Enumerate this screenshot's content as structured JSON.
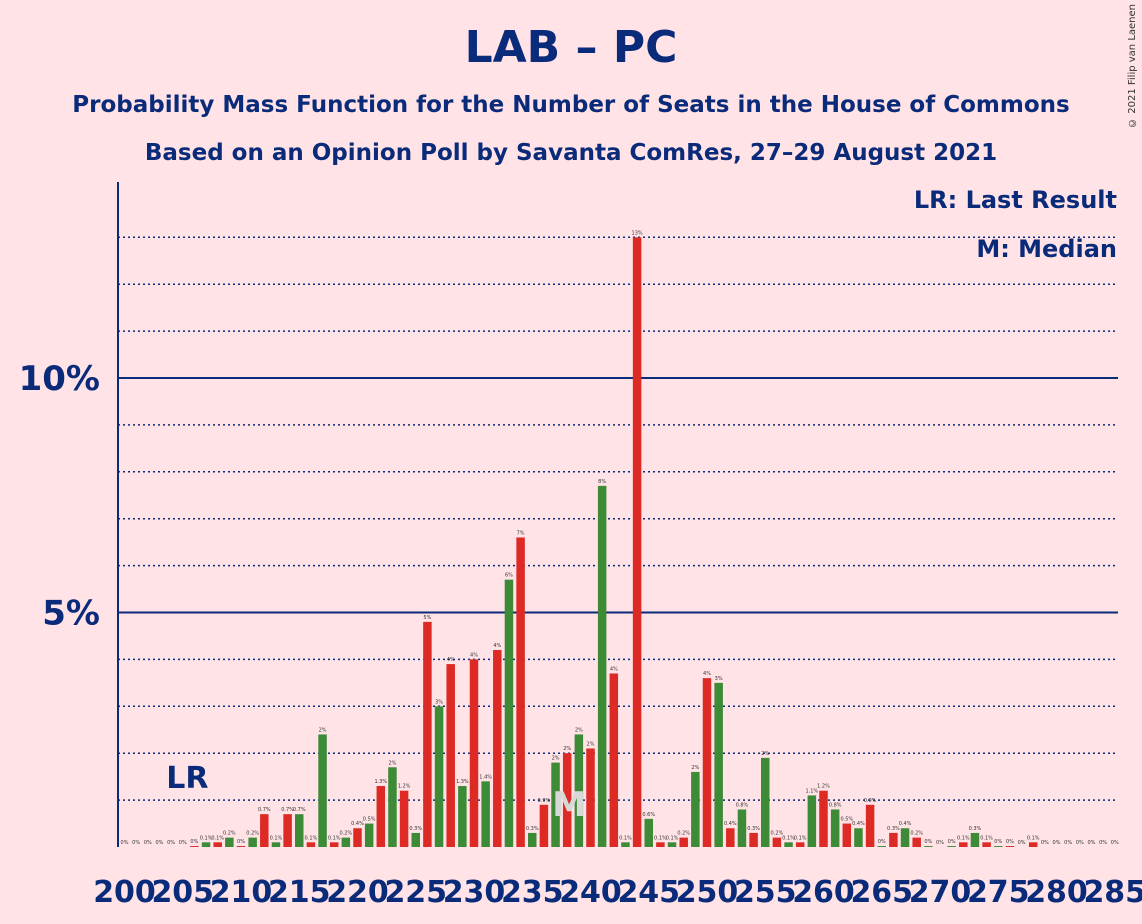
{
  "title": "LAB – PC",
  "subtitle_1": "Probability Mass Function for the Number of Seats in the House of Commons",
  "subtitle_2": "Based on an Opinion Poll by Savanta ComRes, 27–29 August 2021",
  "credit": "© 2021 Filip van Laenen",
  "legend": {
    "lr": "LR: Last Result",
    "m": "M: Median"
  },
  "markers": {
    "lr_label": "LR",
    "median_label": "M",
    "last_result_seat": 206,
    "median_seat": 238
  },
  "colors": {
    "background": "#ffe3e6",
    "text": "#0a2a7a",
    "red": "#dd2a25",
    "green": "#3d8b37",
    "median_marker": "#d8d8d8"
  },
  "chart_data": {
    "type": "bar",
    "x_label": "",
    "y_label": "",
    "xlim": [
      200,
      285
    ],
    "ylim": [
      0,
      14
    ],
    "y_ticks": [
      {
        "value": 5,
        "label": "5%"
      },
      {
        "value": 10,
        "label": "10%"
      }
    ],
    "x_ticks": [
      200,
      205,
      210,
      215,
      220,
      225,
      230,
      235,
      240,
      245,
      250,
      255,
      260,
      265,
      270,
      275,
      280,
      285
    ],
    "bars": [
      {
        "seat": 200,
        "value": 0,
        "label": "0%"
      },
      {
        "seat": 201,
        "value": 0,
        "label": "0%"
      },
      {
        "seat": 202,
        "value": 0,
        "label": "0%"
      },
      {
        "seat": 203,
        "value": 0,
        "label": "0%"
      },
      {
        "seat": 204,
        "value": 0,
        "label": "0%"
      },
      {
        "seat": 205,
        "value": 0,
        "label": "0%"
      },
      {
        "seat": 206,
        "value": 0.02,
        "label": "0%"
      },
      {
        "seat": 207,
        "value": 0.1,
        "label": "0.1%"
      },
      {
        "seat": 208,
        "value": 0.1,
        "label": "0.1%"
      },
      {
        "seat": 209,
        "value": 0.2,
        "label": "0.2%"
      },
      {
        "seat": 210,
        "value": 0.02,
        "label": "0%"
      },
      {
        "seat": 211,
        "value": 0.2,
        "label": "0.2%"
      },
      {
        "seat": 212,
        "value": 0.7,
        "label": "0.7%"
      },
      {
        "seat": 213,
        "value": 0.1,
        "label": "0.1%"
      },
      {
        "seat": 214,
        "value": 0.7,
        "label": "0.7%"
      },
      {
        "seat": 215,
        "value": 0.7,
        "label": "0.7%"
      },
      {
        "seat": 216,
        "value": 0.1,
        "label": "0.1%"
      },
      {
        "seat": 217,
        "value": 2.4,
        "label": "2%"
      },
      {
        "seat": 218,
        "value": 0.1,
        "label": "0.1%"
      },
      {
        "seat": 219,
        "value": 0.2,
        "label": "0.2%"
      },
      {
        "seat": 220,
        "value": 0.4,
        "label": "0.4%"
      },
      {
        "seat": 221,
        "value": 0.5,
        "label": "0.5%"
      },
      {
        "seat": 222,
        "value": 1.3,
        "label": "1.3%"
      },
      {
        "seat": 223,
        "value": 1.7,
        "label": "2%"
      },
      {
        "seat": 224,
        "value": 1.2,
        "label": "1.2%"
      },
      {
        "seat": 225,
        "value": 0.3,
        "label": "0.3%"
      },
      {
        "seat": 226,
        "value": 4.8,
        "label": "5%"
      },
      {
        "seat": 227,
        "value": 3.0,
        "label": "3%"
      },
      {
        "seat": 228,
        "value": 3.9,
        "label": "4%"
      },
      {
        "seat": 229,
        "value": 1.3,
        "label": "1.3%"
      },
      {
        "seat": 230,
        "value": 4.0,
        "label": "4%"
      },
      {
        "seat": 231,
        "value": 1.4,
        "label": "1.4%"
      },
      {
        "seat": 232,
        "value": 4.2,
        "label": "4%"
      },
      {
        "seat": 233,
        "value": 5.7,
        "label": "6%"
      },
      {
        "seat": 234,
        "value": 6.6,
        "label": "7%"
      },
      {
        "seat": 235,
        "value": 0.3,
        "label": "0.3%"
      },
      {
        "seat": 236,
        "value": 0.9,
        "label": "0.9%"
      },
      {
        "seat": 237,
        "value": 1.8,
        "label": "2%"
      },
      {
        "seat": 238,
        "value": 2.0,
        "label": "2%"
      },
      {
        "seat": 239,
        "value": 2.4,
        "label": "2%"
      },
      {
        "seat": 240,
        "value": 2.1,
        "label": "2%"
      },
      {
        "seat": 241,
        "value": 7.7,
        "label": "8%"
      },
      {
        "seat": 242,
        "value": 3.7,
        "label": "4%"
      },
      {
        "seat": 243,
        "value": 0.1,
        "label": "0.1%"
      },
      {
        "seat": 244,
        "value": 13.0,
        "label": "13%"
      },
      {
        "seat": 245,
        "value": 0.6,
        "label": "0.6%"
      },
      {
        "seat": 246,
        "value": 0.1,
        "label": "0.1%"
      },
      {
        "seat": 247,
        "value": 0.1,
        "label": "0.1%"
      },
      {
        "seat": 248,
        "value": 0.2,
        "label": "0.2%"
      },
      {
        "seat": 249,
        "value": 1.6,
        "label": "2%"
      },
      {
        "seat": 250,
        "value": 3.6,
        "label": "4%"
      },
      {
        "seat": 251,
        "value": 3.5,
        "label": "3%"
      },
      {
        "seat": 252,
        "value": 0.4,
        "label": "0.4%"
      },
      {
        "seat": 253,
        "value": 0.8,
        "label": "0.8%"
      },
      {
        "seat": 254,
        "value": 0.3,
        "label": "0.3%"
      },
      {
        "seat": 255,
        "value": 1.9,
        "label": "2%"
      },
      {
        "seat": 256,
        "value": 0.2,
        "label": "0.2%"
      },
      {
        "seat": 257,
        "value": 0.1,
        "label": "0.1%"
      },
      {
        "seat": 258,
        "value": 0.1,
        "label": "0.1%"
      },
      {
        "seat": 259,
        "value": 1.1,
        "label": "1.1%"
      },
      {
        "seat": 260,
        "value": 1.2,
        "label": "1.2%"
      },
      {
        "seat": 261,
        "value": 0.8,
        "label": "0.8%"
      },
      {
        "seat": 262,
        "value": 0.5,
        "label": "0.5%"
      },
      {
        "seat": 263,
        "value": 0.4,
        "label": "0.4%"
      },
      {
        "seat": 264,
        "value": 0.9,
        "label": "0.9%"
      },
      {
        "seat": 265,
        "value": 0.02,
        "label": "0%"
      },
      {
        "seat": 266,
        "value": 0.3,
        "label": "0.3%"
      },
      {
        "seat": 267,
        "value": 0.4,
        "label": "0.4%"
      },
      {
        "seat": 268,
        "value": 0.2,
        "label": "0.2%"
      },
      {
        "seat": 269,
        "value": 0.02,
        "label": "0%"
      },
      {
        "seat": 270,
        "value": 0,
        "label": "0%"
      },
      {
        "seat": 271,
        "value": 0.02,
        "label": "0%"
      },
      {
        "seat": 272,
        "value": 0.1,
        "label": "0.1%"
      },
      {
        "seat": 273,
        "value": 0.3,
        "label": "0.3%"
      },
      {
        "seat": 274,
        "value": 0.1,
        "label": "0.1%"
      },
      {
        "seat": 275,
        "value": 0.02,
        "label": "0%"
      },
      {
        "seat": 276,
        "value": 0.02,
        "label": "0%"
      },
      {
        "seat": 277,
        "value": 0,
        "label": "0%"
      },
      {
        "seat": 278,
        "value": 0.1,
        "label": "0.1%"
      },
      {
        "seat": 279,
        "value": 0,
        "label": "0%"
      },
      {
        "seat": 280,
        "value": 0,
        "label": "0%"
      },
      {
        "seat": 281,
        "value": 0,
        "label": "0%"
      },
      {
        "seat": 282,
        "value": 0,
        "label": "0%"
      },
      {
        "seat": 283,
        "value": 0,
        "label": "0%"
      },
      {
        "seat": 284,
        "value": 0,
        "label": "0%"
      },
      {
        "seat": 285,
        "value": 0,
        "label": "0%"
      }
    ]
  }
}
